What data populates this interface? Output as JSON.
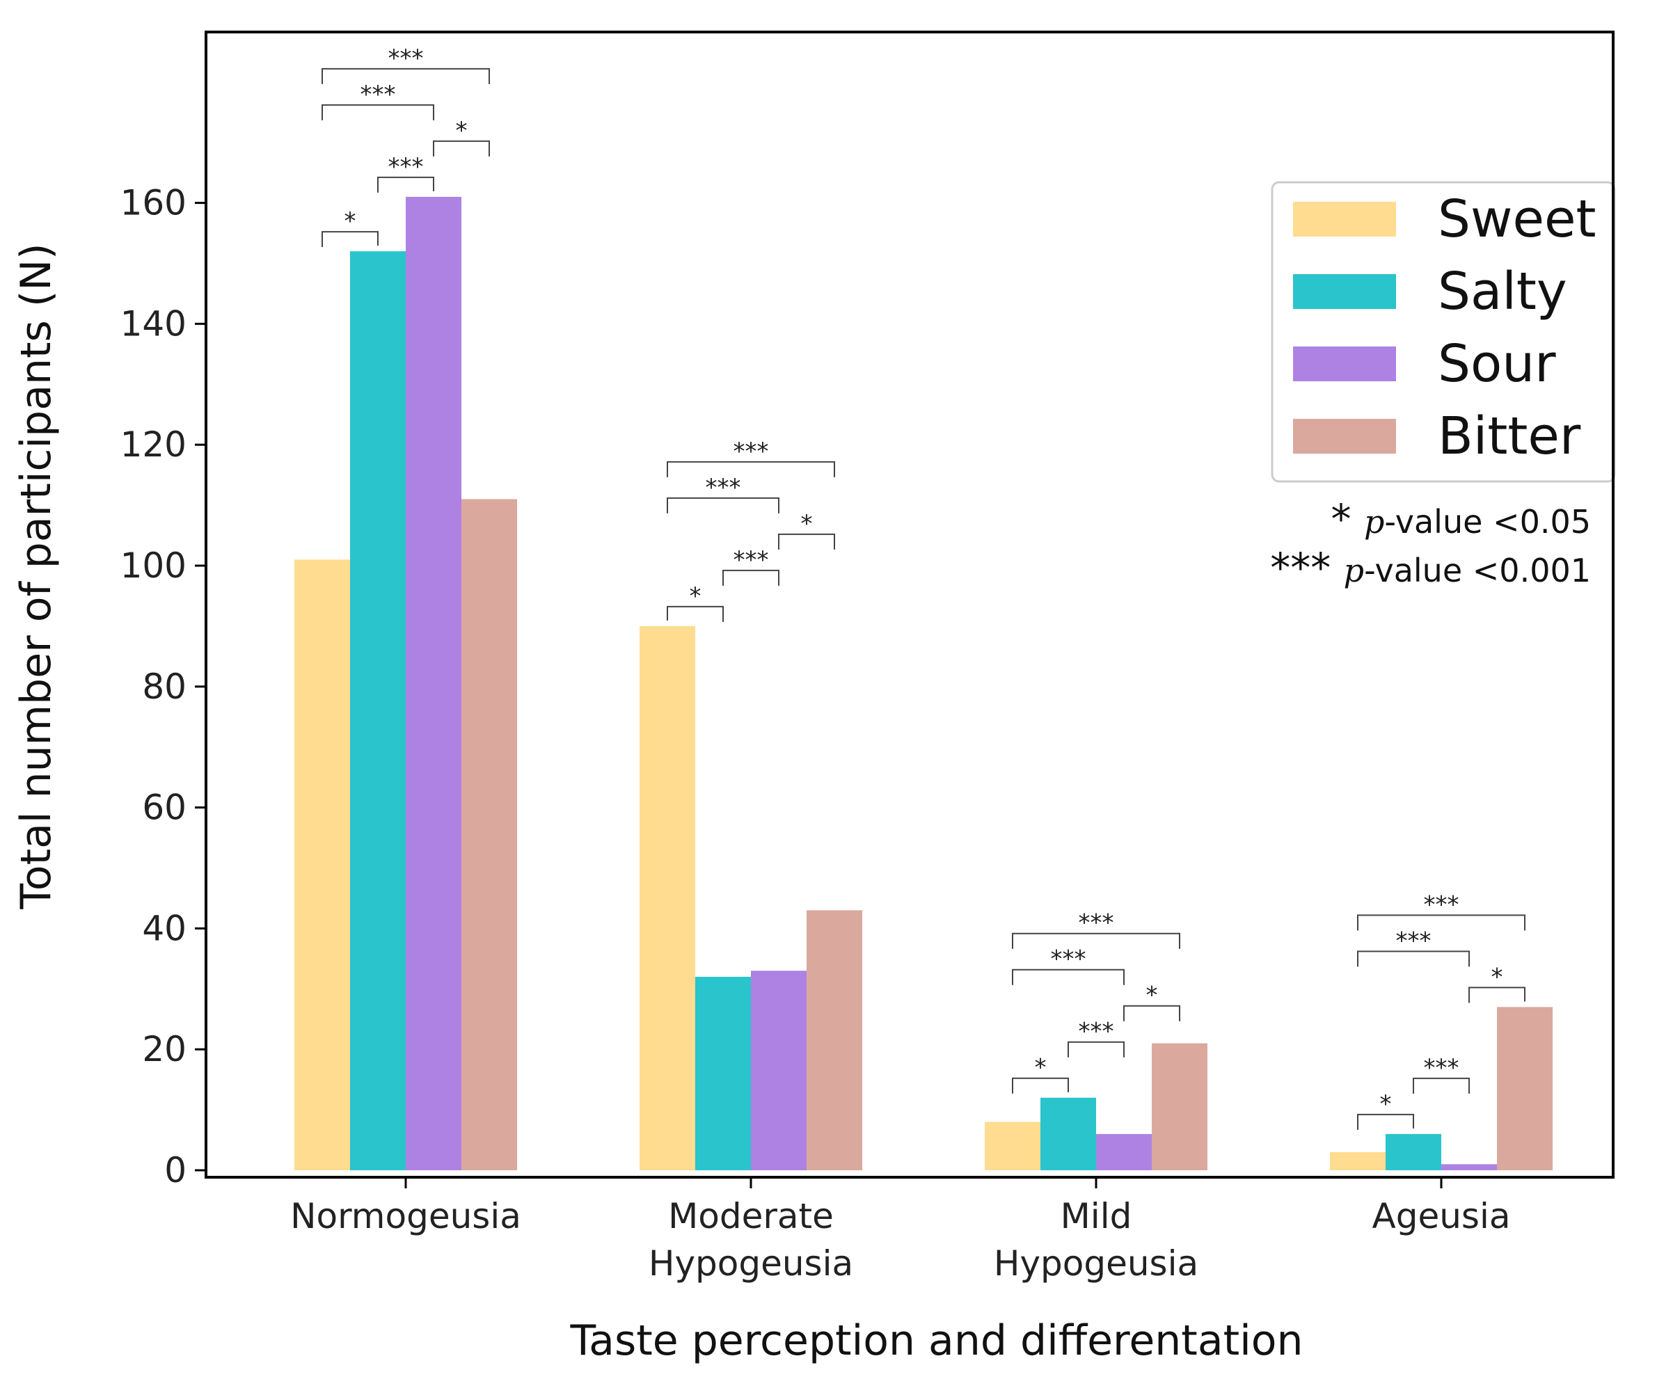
{
  "chart_data": {
    "type": "bar",
    "categories": [
      [
        "Normogeusia"
      ],
      [
        "Moderate",
        "Hypogeusia"
      ],
      [
        "Mild",
        "Hypogeusia"
      ],
      [
        "Ageusia"
      ]
    ],
    "series": [
      {
        "name": "Sweet",
        "color": "#FFDC90",
        "values": [
          101,
          90,
          8,
          3
        ]
      },
      {
        "name": "Salty",
        "color": "#2AC4CC",
        "values": [
          152,
          32,
          12,
          6
        ]
      },
      {
        "name": "Sour",
        "color": "#AE82E3",
        "values": [
          161,
          33,
          6,
          1
        ]
      },
      {
        "name": "Bitter",
        "color": "#DBA89E",
        "values": [
          111,
          43,
          21,
          27
        ]
      }
    ],
    "title": "",
    "xlabel": "Taste perception and differentation",
    "ylabel": "Total number of participants (N)",
    "ylim": [
      0,
      180
    ],
    "yticks": [
      0,
      20,
      40,
      60,
      80,
      100,
      120,
      140,
      160
    ],
    "legend_position": "top-right",
    "significance_legend": [
      {
        "symbol": "*",
        "prefix": "p",
        "suffix": "-value <0.05"
      },
      {
        "symbol": "***",
        "prefix": "p",
        "suffix": "-value <0.001"
      }
    ],
    "annotations": [
      {
        "category": 0,
        "from": "Sweet",
        "to": "Salty",
        "label": "*"
      },
      {
        "category": 0,
        "from": "Salty",
        "to": "Sour",
        "label": "***"
      },
      {
        "category": 0,
        "from": "Sour",
        "to": "Bitter",
        "label": "*"
      },
      {
        "category": 0,
        "from": "Sweet",
        "to": "Sour",
        "label": "***"
      },
      {
        "category": 0,
        "from": "Sweet",
        "to": "Bitter",
        "label": "***"
      },
      {
        "category": 1,
        "from": "Sweet",
        "to": "Salty",
        "label": "*"
      },
      {
        "category": 1,
        "from": "Salty",
        "to": "Sour",
        "label": "***"
      },
      {
        "category": 1,
        "from": "Sour",
        "to": "Bitter",
        "label": "*"
      },
      {
        "category": 1,
        "from": "Sweet",
        "to": "Sour",
        "label": "***"
      },
      {
        "category": 1,
        "from": "Sweet",
        "to": "Bitter",
        "label": "***"
      },
      {
        "category": 2,
        "from": "Sweet",
        "to": "Salty",
        "label": "*"
      },
      {
        "category": 2,
        "from": "Salty",
        "to": "Sour",
        "label": "***"
      },
      {
        "category": 2,
        "from": "Sour",
        "to": "Bitter",
        "label": "*"
      },
      {
        "category": 2,
        "from": "Sweet",
        "to": "Sour",
        "label": "***"
      },
      {
        "category": 2,
        "from": "Sweet",
        "to": "Bitter",
        "label": "***"
      },
      {
        "category": 3,
        "from": "Sweet",
        "to": "Salty",
        "label": "*"
      },
      {
        "category": 3,
        "from": "Salty",
        "to": "Sour",
        "label": "***"
      },
      {
        "category": 3,
        "from": "Sour",
        "to": "Bitter",
        "label": "*"
      },
      {
        "category": 3,
        "from": "Sweet",
        "to": "Sour",
        "label": "***"
      },
      {
        "category": 3,
        "from": "Sweet",
        "to": "Bitter",
        "label": "***"
      }
    ]
  }
}
